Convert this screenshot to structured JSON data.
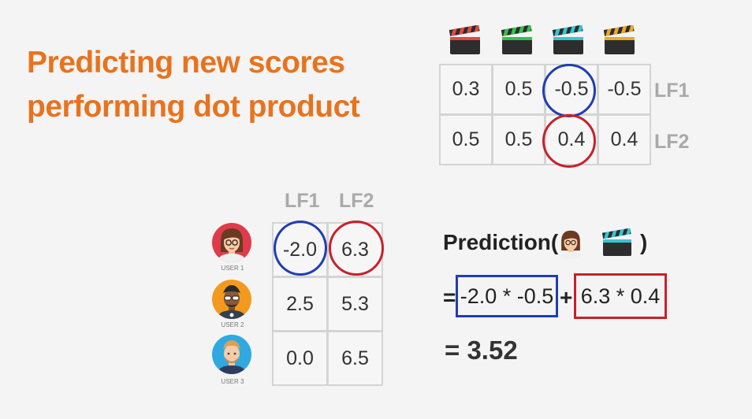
{
  "title": {
    "line1": "Predicting new scores",
    "line2": "performing dot product"
  },
  "items": {
    "icons": [
      "clapperboard-red-icon",
      "clapperboard-green-icon",
      "clapperboard-cyan-icon",
      "clapperboard-yellow-icon"
    ],
    "colors": [
      "#e24a3b",
      "#34c24a",
      "#33c6d6",
      "#f0a623"
    ],
    "factors": [
      {
        "label": "LF1",
        "values": [
          "0.3",
          "0.5",
          "-0.5",
          "-0.5"
        ]
      },
      {
        "label": "LF2",
        "values": [
          "0.5",
          "0.5",
          "0.4",
          "0.4"
        ]
      }
    ]
  },
  "users": {
    "headers": [
      "LF1",
      "LF2"
    ],
    "rows": [
      {
        "label": "USER 1",
        "values": [
          "-2.0",
          "6.3"
        ]
      },
      {
        "label": "USER 2",
        "values": [
          "2.5",
          "5.3"
        ]
      },
      {
        "label": "USER 3",
        "values": [
          "0.0",
          "6.5"
        ]
      }
    ]
  },
  "prediction": {
    "label": "Prediction(",
    "close": ")",
    "eq": "=",
    "term1": "-2.0 * -0.5",
    "plus": "+",
    "term2": "6.3 * 0.4",
    "result": "= 3.52"
  },
  "highlight_colors": {
    "blue": "#1f3db5",
    "red": "#c9202a"
  }
}
